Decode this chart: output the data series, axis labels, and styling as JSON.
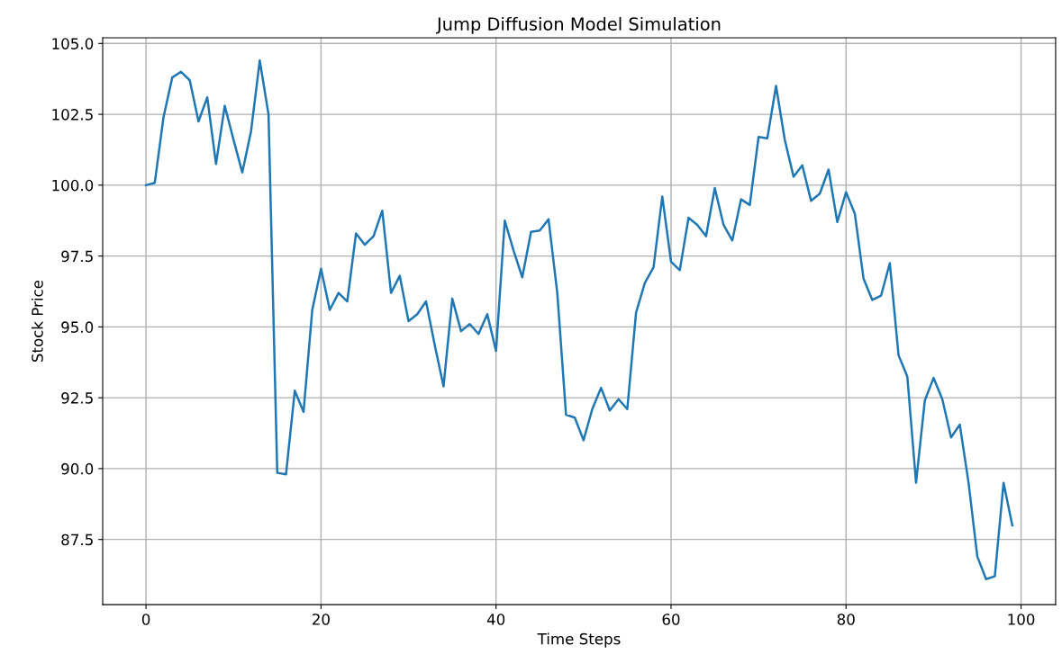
{
  "chart_data": {
    "type": "line",
    "title": "Jump Diffusion Model Simulation",
    "xlabel": "Time Steps",
    "ylabel": "Stock Price",
    "x": [
      0,
      1,
      2,
      3,
      4,
      5,
      6,
      7,
      8,
      9,
      10,
      11,
      12,
      13,
      14,
      15,
      16,
      17,
      18,
      19,
      20,
      21,
      22,
      23,
      24,
      25,
      26,
      27,
      28,
      29,
      30,
      31,
      32,
      33,
      34,
      35,
      36,
      37,
      38,
      39,
      40,
      41,
      42,
      43,
      44,
      45,
      46,
      47,
      48,
      49,
      50,
      51,
      52,
      53,
      54,
      55,
      56,
      57,
      58,
      59,
      60,
      61,
      62,
      63,
      64,
      65,
      66,
      67,
      68,
      69,
      70,
      71,
      72,
      73,
      74,
      75,
      76,
      77,
      78,
      79,
      80,
      81,
      82,
      83,
      84,
      85,
      86,
      87,
      88,
      89,
      90,
      91,
      92,
      93,
      94,
      95,
      96,
      97,
      98,
      99
    ],
    "series": [
      {
        "color": "#1f77b4",
        "values": [
          100.0,
          100.08,
          102.4,
          103.8,
          104.0,
          103.7,
          102.25,
          103.1,
          100.75,
          102.8,
          101.6,
          100.45,
          101.9,
          104.4,
          102.5,
          89.85,
          89.8,
          92.75,
          92.0,
          95.6,
          97.05,
          95.6,
          96.2,
          95.9,
          98.3,
          97.9,
          98.2,
          99.1,
          96.2,
          96.8,
          95.2,
          95.45,
          95.9,
          94.35,
          92.9,
          96.0,
          94.85,
          95.1,
          94.75,
          95.45,
          94.15,
          98.75,
          97.7,
          96.75,
          98.35,
          98.4,
          98.8,
          96.2,
          91.9,
          91.8,
          91.0,
          92.1,
          92.85,
          92.05,
          92.45,
          92.1,
          95.5,
          96.55,
          97.1,
          99.6,
          97.3,
          97.0,
          98.85,
          98.6,
          98.2,
          99.9,
          98.6,
          98.05,
          99.5,
          99.3,
          101.7,
          101.65,
          103.5,
          101.6,
          100.3,
          100.7,
          99.45,
          99.7,
          100.55,
          98.7,
          99.75,
          99.0,
          96.7,
          95.95,
          96.1,
          97.25,
          94.0,
          93.25,
          89.5,
          92.4,
          93.2,
          92.45,
          91.1,
          91.55,
          89.5,
          86.9,
          86.1,
          86.2,
          89.5,
          88.0
        ]
      }
    ],
    "xlim": [
      -4.95,
      103.95
    ],
    "xticks": [
      0,
      20,
      40,
      60,
      80,
      100
    ],
    "ylim": [
      85.2,
      105.2
    ],
    "yticks": [
      {
        "value": 87.5,
        "label": "87.5"
      },
      {
        "value": 90,
        "label": "90.0"
      },
      {
        "value": 92.5,
        "label": "92.5"
      },
      {
        "value": 95,
        "label": "95.0"
      },
      {
        "value": 97.5,
        "label": "97.5"
      },
      {
        "value": 100,
        "label": "100.0"
      },
      {
        "value": 102.5,
        "label": "102.5"
      },
      {
        "value": 105,
        "label": "105.0"
      }
    ],
    "grid": true,
    "marker": "none",
    "line_style": "solid"
  }
}
